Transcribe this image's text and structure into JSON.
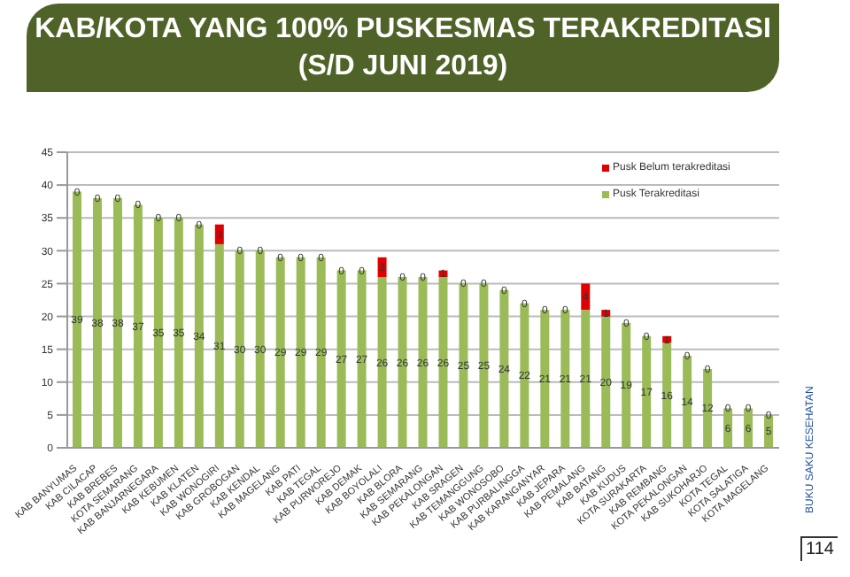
{
  "chart_data": {
    "type": "bar",
    "title": "KAB/KOTA YANG 100% PUSKESMAS TERAKREDITASI",
    "subtitle": "(S/D JUNI 2019)",
    "categories": [
      "KAB BANYUMAS",
      "KAB CILACAP",
      "KAB BREBES",
      "KOTA SEMARANG",
      "KAB BANJARNEGARA",
      "KAB KEBUMEN",
      "KAB KLATEN",
      "KAB WONOGIRI",
      "KAB GROBOGAN",
      "KAB KENDAL",
      "KAB MAGELANG",
      "KAB PATI",
      "KAB TEGAL",
      "KAB PURWOREJO",
      "KAB DEMAK",
      "KAB BOYOLALI",
      "KAB BLORA",
      "KAB SEMARANG",
      "KAB PEKALONGAN",
      "KAB SRAGEN",
      "KAB TEMANGGUNG",
      "KAB WONOSOBO",
      "KAB PURBALINGGA",
      "KAB KARANGANYAR",
      "KAB JEPARA",
      "KAB PEMALANG",
      "KAB BATANG",
      "KAB KUDUS",
      "KOTA SURAKARTA",
      "KAB REMBANG",
      "KOTA PEKALONGAN",
      "KAB SUKOHARJO",
      "KOTA TEGAL",
      "KOTA SALATIGA",
      "KOTA MAGELANG"
    ],
    "series": [
      {
        "name": "Pusk Terakreditasi",
        "color": "#9bbb59",
        "values": [
          39,
          38,
          38,
          37,
          35,
          35,
          34,
          31,
          30,
          30,
          29,
          29,
          29,
          27,
          27,
          26,
          26,
          26,
          26,
          25,
          25,
          24,
          22,
          21,
          21,
          21,
          20,
          19,
          17,
          16,
          14,
          12,
          6,
          6,
          5
        ]
      },
      {
        "name": "Pusk Belum terakreditasi",
        "color": "#e00000",
        "values": [
          0,
          0,
          0,
          0,
          0,
          0,
          0,
          3,
          0,
          0,
          0,
          0,
          0,
          0,
          0,
          3,
          0,
          0,
          1,
          0,
          0,
          0,
          0,
          0,
          0,
          4,
          1,
          0,
          0,
          1,
          0,
          0,
          0,
          0,
          0
        ]
      }
    ],
    "stacked": true,
    "data_labels": true,
    "ylim": [
      0,
      45
    ],
    "yticks": [
      0,
      5,
      10,
      15,
      20,
      25,
      30,
      35,
      40,
      45
    ],
    "grid": "y",
    "legend": "top right",
    "annotations": [
      "BUKU SAKU KESEHATAN",
      "114"
    ]
  }
}
